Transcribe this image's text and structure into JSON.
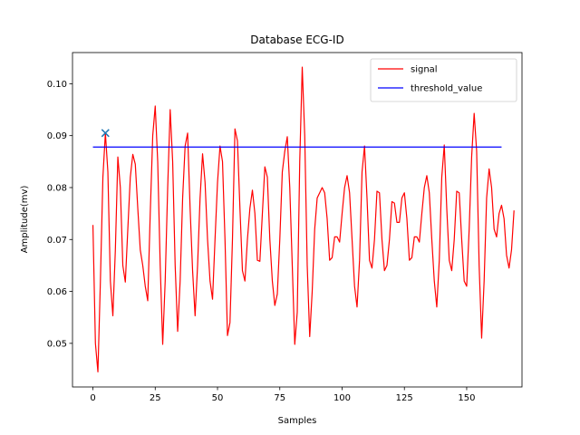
{
  "chart_data": {
    "type": "line",
    "title": "Database ECG-ID",
    "xlabel": "Samples",
    "ylabel": "Amplitude(mv)",
    "xlim": [
      -8.2,
      172.2
    ],
    "ylim": [
      0.0416,
      0.106
    ],
    "xticks": [
      0,
      25,
      50,
      75,
      100,
      125,
      150
    ],
    "yticks": [
      0.05,
      0.06,
      0.07,
      0.08,
      0.09,
      0.1
    ],
    "ytick_labels": [
      "0.05",
      "0.06",
      "0.07",
      "0.08",
      "0.09",
      "0.10"
    ],
    "series": [
      {
        "name": "signal",
        "color": "#ff0000",
        "x_start": 0,
        "values": [
          0.0728,
          0.05,
          0.0445,
          0.062,
          0.082,
          0.0905,
          0.083,
          0.062,
          0.0553,
          0.068,
          0.0859,
          0.08,
          0.065,
          0.0618,
          0.072,
          0.082,
          0.0864,
          0.0845,
          0.076,
          0.068,
          0.065,
          0.061,
          0.0582,
          0.075,
          0.09,
          0.0957,
          0.085,
          0.065,
          0.0498,
          0.062,
          0.08,
          0.095,
          0.085,
          0.065,
          0.0523,
          0.062,
          0.078,
          0.088,
          0.0905,
          0.076,
          0.064,
          0.0553,
          0.065,
          0.078,
          0.0865,
          0.081,
          0.07,
          0.062,
          0.0585,
          0.07,
          0.081,
          0.088,
          0.085,
          0.07,
          0.0515,
          0.054,
          0.07,
          0.0913,
          0.089,
          0.076,
          0.064,
          0.062,
          0.07,
          0.076,
          0.0795,
          0.075,
          0.066,
          0.0658,
          0.075,
          0.084,
          0.082,
          0.07,
          0.062,
          0.0573,
          0.0595,
          0.07,
          0.083,
          0.087,
          0.0898,
          0.08,
          0.065,
          0.0498,
          0.056,
          0.085,
          0.1032,
          0.09,
          0.065,
          0.0513,
          0.06,
          0.072,
          0.078,
          0.079,
          0.08,
          0.079,
          0.074,
          0.066,
          0.0665,
          0.0705,
          0.0705,
          0.0695,
          0.075,
          0.08,
          0.0823,
          0.079,
          0.07,
          0.061,
          0.057,
          0.066,
          0.083,
          0.088,
          0.078,
          0.066,
          0.0645,
          0.07,
          0.0793,
          0.079,
          0.07,
          0.064,
          0.065,
          0.07,
          0.0773,
          0.077,
          0.0733,
          0.0733,
          0.078,
          0.079,
          0.074,
          0.066,
          0.0665,
          0.0705,
          0.0705,
          0.0695,
          0.075,
          0.08,
          0.0823,
          0.079,
          0.07,
          0.062,
          0.057,
          0.066,
          0.082,
          0.0882,
          0.076,
          0.066,
          0.064,
          0.07,
          0.0793,
          0.079,
          0.07,
          0.062,
          0.061,
          0.072,
          0.086,
          0.0943,
          0.087,
          0.065,
          0.051,
          0.062,
          0.078,
          0.0836,
          0.08,
          0.072,
          0.0705,
          0.075,
          0.0766,
          0.074,
          0.067,
          0.0645,
          0.068,
          0.0756
        ]
      },
      {
        "name": "threshold_value",
        "color": "#0000ff",
        "x": [
          0,
          164
        ],
        "values": [
          0.0878,
          0.0878
        ]
      }
    ],
    "marker": {
      "x": 5,
      "y": 0.0905,
      "symbol": "x",
      "color": "#1f77b4"
    },
    "legend": {
      "position": "top-right",
      "entries": [
        "signal",
        "threshold_value"
      ]
    }
  }
}
